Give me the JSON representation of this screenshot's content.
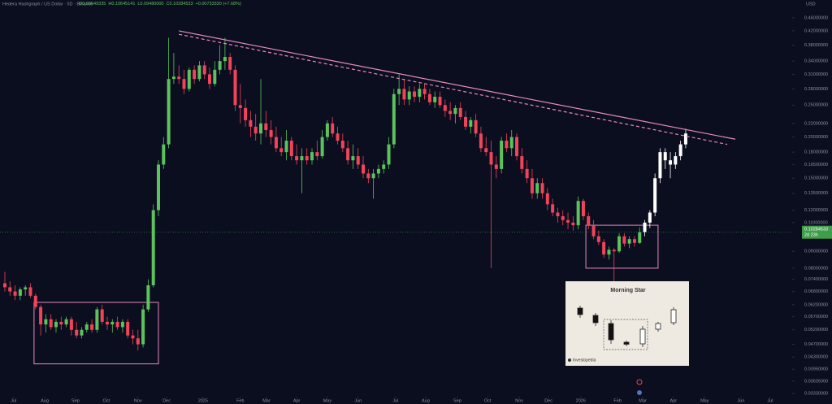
{
  "chart_data": {
    "type": "candlestick",
    "title": "Hedera Hashgraph / US Dollar · 5D · Binance",
    "legend_values": [
      "O0.09549335",
      "H0.10645141",
      "L0.09480000",
      "C0.10284533",
      "+0.00733330 (+7.68%)"
    ],
    "currency": "USD",
    "log_scale": true,
    "xlim": [
      -0.95,
      153.8
    ],
    "ylim": [
      0.0326,
      0.521
    ],
    "xticks": [
      {
        "value": 1.7,
        "label": "Jul"
      },
      {
        "value": 7.8,
        "label": "Aug"
      },
      {
        "value": 13.8,
        "label": "Sep"
      },
      {
        "value": 19.8,
        "label": "Oct"
      },
      {
        "value": 26,
        "label": "Nov"
      },
      {
        "value": 31.6,
        "label": "Dec"
      },
      {
        "value": 38.7,
        "label": "2025"
      },
      {
        "value": 46,
        "label": "Feb"
      },
      {
        "value": 51.1,
        "label": "Mar"
      },
      {
        "value": 57,
        "label": "Apr"
      },
      {
        "value": 63,
        "label": "May"
      },
      {
        "value": 69,
        "label": "Jun"
      },
      {
        "value": 76.3,
        "label": "Jul"
      },
      {
        "value": 82.2,
        "label": "Aug"
      },
      {
        "value": 88.4,
        "label": "Sep"
      },
      {
        "value": 94.3,
        "label": "Oct"
      },
      {
        "value": 100.5,
        "label": "Nov"
      },
      {
        "value": 106.2,
        "label": "Dec"
      },
      {
        "value": 112.5,
        "label": "2026"
      },
      {
        "value": 119.7,
        "label": "Feb"
      },
      {
        "value": 124.6,
        "label": "Mar"
      },
      {
        "value": 130.6,
        "label": "Apr"
      },
      {
        "value": 136.7,
        "label": "May"
      },
      {
        "value": 143.8,
        "label": "Jun"
      },
      {
        "value": 149.5,
        "label": "Jul"
      }
    ],
    "yticks": [
      {
        "value": 0.46,
        "label": "0.46000000"
      },
      {
        "value": 0.42,
        "label": "0.42000000"
      },
      {
        "value": 0.38,
        "label": "0.38000000"
      },
      {
        "value": 0.34,
        "label": "0.34000000"
      },
      {
        "value": 0.31,
        "label": "0.31000000"
      },
      {
        "value": 0.28,
        "label": "0.28000000"
      },
      {
        "value": 0.25,
        "label": "0.25000000"
      },
      {
        "value": 0.22,
        "label": "0.22000000"
      },
      {
        "value": 0.2,
        "label": "0.20000000"
      },
      {
        "value": 0.18,
        "label": "0.18000000"
      },
      {
        "value": 0.165,
        "label": "0.16500000"
      },
      {
        "value": 0.15,
        "label": "0.15000000"
      },
      {
        "value": 0.135,
        "label": "0.13500000"
      },
      {
        "value": 0.12,
        "label": "0.12000000"
      },
      {
        "value": 0.11,
        "label": "0.11000000"
      },
      {
        "value": 0.09,
        "label": "0.09000000"
      },
      {
        "value": 0.08,
        "label": "0.08000000"
      },
      {
        "value": 0.074,
        "label": "0.07400000"
      },
      {
        "value": 0.068,
        "label": "0.06800000"
      },
      {
        "value": 0.062,
        "label": "0.06200000"
      },
      {
        "value": 0.057,
        "label": "0.05700000"
      },
      {
        "value": 0.052,
        "label": "0.05200000"
      },
      {
        "value": 0.047,
        "label": "0.04700000"
      },
      {
        "value": 0.043,
        "label": "0.04300000"
      },
      {
        "value": 0.0395,
        "label": "0.03950000"
      },
      {
        "value": 0.03635,
        "label": "0.03635000"
      },
      {
        "value": 0.0333,
        "label": "0.03330000"
      }
    ],
    "series": [
      {
        "x_start": 0,
        "up_color": "#5cc25c",
        "down_color": "#f0445a",
        "ohlc": [
          [
            0.072,
            0.078,
            0.068,
            0.07
          ],
          [
            0.07,
            0.073,
            0.066,
            0.068
          ],
          [
            0.068,
            0.071,
            0.064,
            0.066
          ],
          [
            0.066,
            0.07,
            0.064,
            0.069
          ],
          [
            0.069,
            0.071,
            0.066,
            0.07
          ],
          [
            0.07,
            0.072,
            0.065,
            0.066
          ],
          [
            0.066,
            0.067,
            0.06,
            0.061
          ],
          [
            0.061,
            0.062,
            0.05,
            0.054
          ],
          [
            0.054,
            0.058,
            0.051,
            0.056
          ],
          [
            0.056,
            0.058,
            0.052,
            0.053
          ],
          [
            0.053,
            0.056,
            0.051,
            0.055
          ],
          [
            0.055,
            0.057,
            0.052,
            0.054
          ],
          [
            0.054,
            0.057,
            0.053,
            0.056
          ],
          [
            0.056,
            0.057,
            0.05,
            0.052
          ],
          [
            0.052,
            0.055,
            0.049,
            0.05
          ],
          [
            0.05,
            0.053,
            0.049,
            0.052
          ],
          [
            0.052,
            0.055,
            0.051,
            0.054
          ],
          [
            0.054,
            0.056,
            0.051,
            0.052
          ],
          [
            0.052,
            0.061,
            0.051,
            0.06
          ],
          [
            0.06,
            0.062,
            0.054,
            0.055
          ],
          [
            0.055,
            0.057,
            0.052,
            0.054
          ],
          [
            0.054,
            0.056,
            0.051,
            0.055
          ],
          [
            0.055,
            0.057,
            0.052,
            0.053
          ],
          [
            0.053,
            0.056,
            0.051,
            0.055
          ],
          [
            0.055,
            0.056,
            0.049,
            0.05
          ],
          [
            0.05,
            0.052,
            0.047,
            0.049
          ],
          [
            0.049,
            0.052,
            0.045,
            0.047
          ],
          [
            0.047,
            0.062,
            0.046,
            0.06
          ],
          [
            0.06,
            0.074,
            0.059,
            0.071
          ],
          [
            0.071,
            0.125,
            0.07,
            0.12
          ],
          [
            0.12,
            0.17,
            0.115,
            0.165
          ],
          [
            0.165,
            0.2,
            0.16,
            0.19
          ],
          [
            0.19,
            0.4,
            0.185,
            0.3
          ],
          [
            0.3,
            0.36,
            0.29,
            0.305
          ],
          [
            0.305,
            0.33,
            0.29,
            0.3
          ],
          [
            0.3,
            0.32,
            0.27,
            0.28
          ],
          [
            0.28,
            0.325,
            0.275,
            0.32
          ],
          [
            0.32,
            0.33,
            0.29,
            0.3
          ],
          [
            0.3,
            0.34,
            0.295,
            0.33
          ],
          [
            0.33,
            0.34,
            0.3,
            0.31
          ],
          [
            0.31,
            0.325,
            0.28,
            0.29
          ],
          [
            0.29,
            0.34,
            0.285,
            0.32
          ],
          [
            0.32,
            0.38,
            0.31,
            0.34
          ],
          [
            0.34,
            0.4,
            0.32,
            0.35
          ],
          [
            0.35,
            0.36,
            0.31,
            0.32
          ],
          [
            0.32,
            0.33,
            0.24,
            0.25
          ],
          [
            0.25,
            0.29,
            0.22,
            0.245
          ],
          [
            0.245,
            0.26,
            0.215,
            0.225
          ],
          [
            0.225,
            0.24,
            0.2,
            0.215
          ],
          [
            0.215,
            0.235,
            0.195,
            0.205
          ],
          [
            0.205,
            0.3,
            0.19,
            0.22
          ],
          [
            0.22,
            0.24,
            0.2,
            0.21
          ],
          [
            0.21,
            0.225,
            0.19,
            0.2
          ],
          [
            0.2,
            0.215,
            0.18,
            0.185
          ],
          [
            0.185,
            0.2,
            0.175,
            0.18
          ],
          [
            0.18,
            0.21,
            0.17,
            0.195
          ],
          [
            0.195,
            0.2,
            0.17,
            0.175
          ],
          [
            0.175,
            0.19,
            0.165,
            0.17
          ],
          [
            0.17,
            0.185,
            0.135,
            0.175
          ],
          [
            0.175,
            0.185,
            0.165,
            0.17
          ],
          [
            0.17,
            0.185,
            0.165,
            0.18
          ],
          [
            0.18,
            0.195,
            0.17,
            0.175
          ],
          [
            0.175,
            0.21,
            0.172,
            0.2
          ],
          [
            0.2,
            0.225,
            0.195,
            0.22
          ],
          [
            0.22,
            0.23,
            0.2,
            0.205
          ],
          [
            0.205,
            0.215,
            0.19,
            0.195
          ],
          [
            0.195,
            0.205,
            0.18,
            0.185
          ],
          [
            0.185,
            0.195,
            0.165,
            0.17
          ],
          [
            0.17,
            0.19,
            0.16,
            0.175
          ],
          [
            0.175,
            0.185,
            0.16,
            0.165
          ],
          [
            0.165,
            0.175,
            0.15,
            0.155
          ],
          [
            0.155,
            0.16,
            0.145,
            0.15
          ],
          [
            0.15,
            0.16,
            0.13,
            0.155
          ],
          [
            0.155,
            0.165,
            0.15,
            0.16
          ],
          [
            0.16,
            0.17,
            0.155,
            0.165
          ],
          [
            0.165,
            0.2,
            0.16,
            0.19
          ],
          [
            0.19,
            0.28,
            0.185,
            0.27
          ],
          [
            0.27,
            0.31,
            0.25,
            0.28
          ],
          [
            0.28,
            0.3,
            0.25,
            0.26
          ],
          [
            0.26,
            0.285,
            0.25,
            0.275
          ],
          [
            0.275,
            0.285,
            0.255,
            0.265
          ],
          [
            0.265,
            0.29,
            0.255,
            0.28
          ],
          [
            0.28,
            0.29,
            0.26,
            0.27
          ],
          [
            0.27,
            0.28,
            0.25,
            0.255
          ],
          [
            0.255,
            0.275,
            0.245,
            0.265
          ],
          [
            0.265,
            0.275,
            0.245,
            0.25
          ],
          [
            0.25,
            0.26,
            0.23,
            0.24
          ],
          [
            0.24,
            0.255,
            0.225,
            0.235
          ],
          [
            0.235,
            0.25,
            0.22,
            0.245
          ],
          [
            0.245,
            0.255,
            0.225,
            0.23
          ],
          [
            0.23,
            0.24,
            0.21,
            0.215
          ],
          [
            0.215,
            0.23,
            0.205,
            0.225
          ],
          [
            0.225,
            0.235,
            0.2,
            0.205
          ],
          [
            0.205,
            0.215,
            0.18,
            0.185
          ],
          [
            0.185,
            0.2,
            0.175,
            0.18
          ],
          [
            0.18,
            0.195,
            0.08,
            0.165
          ],
          [
            0.165,
            0.175,
            0.15,
            0.16
          ],
          [
            0.16,
            0.2,
            0.155,
            0.195
          ],
          [
            0.195,
            0.205,
            0.18,
            0.185
          ],
          [
            0.185,
            0.21,
            0.175,
            0.2
          ],
          [
            0.2,
            0.205,
            0.17,
            0.175
          ],
          [
            0.175,
            0.185,
            0.155,
            0.16
          ],
          [
            0.16,
            0.17,
            0.145,
            0.15
          ],
          [
            0.15,
            0.16,
            0.13,
            0.135
          ],
          [
            0.135,
            0.15,
            0.13,
            0.145
          ],
          [
            0.145,
            0.15,
            0.13,
            0.135
          ],
          [
            0.135,
            0.14,
            0.12,
            0.125
          ],
          [
            0.125,
            0.13,
            0.115,
            0.118
          ],
          [
            0.118,
            0.122,
            0.11,
            0.115
          ],
          [
            0.115,
            0.12,
            0.108,
            0.112
          ],
          [
            0.112,
            0.118,
            0.105,
            0.11
          ],
          [
            0.11,
            0.115,
            0.104,
            0.108
          ],
          [
            0.108,
            0.132,
            0.105,
            0.128
          ],
          [
            0.128,
            0.13,
            0.112,
            0.115
          ],
          [
            0.115,
            0.118,
            0.105,
            0.108
          ],
          [
            0.108,
            0.112,
            0.098,
            0.1
          ],
          [
            0.1,
            0.104,
            0.094,
            0.096
          ],
          [
            0.096,
            0.098,
            0.086,
            0.088
          ],
          [
            0.088,
            0.093,
            0.085,
            0.091
          ],
          [
            0.091,
            0.092,
            0.072,
            0.09
          ],
          [
            0.09,
            0.102,
            0.089,
            0.1
          ],
          [
            0.1,
            0.102,
            0.093,
            0.095
          ],
          [
            0.095,
            0.1,
            0.092,
            0.098
          ],
          [
            0.098,
            0.1,
            0.093,
            0.0955
          ],
          [
            0.09549335,
            0.10645141,
            0.0948,
            0.10284533
          ]
        ]
      },
      {
        "x_start": 125,
        "up_color": "#ffffff",
        "down_color": "#ffffff",
        "ohlc": [
          [
            0.103,
            0.112,
            0.1,
            0.11
          ],
          [
            0.11,
            0.12,
            0.106,
            0.118
          ],
          [
            0.118,
            0.155,
            0.115,
            0.15
          ],
          [
            0.15,
            0.185,
            0.145,
            0.18
          ],
          [
            0.18,
            0.185,
            0.16,
            0.17
          ],
          [
            0.17,
            0.18,
            0.15,
            0.165
          ],
          [
            0.165,
            0.18,
            0.16,
            0.175
          ],
          [
            0.175,
            0.195,
            0.17,
            0.19
          ],
          [
            0.19,
            0.212,
            0.185,
            0.205
          ]
        ]
      }
    ],
    "trendlines": [
      {
        "points": [
          [
            34,
            0.42
          ],
          [
            142.7,
            0.197
          ]
        ],
        "color": "#e58bbf",
        "dashed": false
      },
      {
        "points": [
          [
            34,
            0.41
          ],
          [
            141.1,
            0.19
          ]
        ],
        "color": "#e58bbf",
        "dashed": true
      }
    ],
    "boxes": [
      {
        "x": [
          5.7,
          30
        ],
        "y": [
          0.041,
          0.063
        ],
        "color": "#e58bbf"
      },
      {
        "x": [
          113.5,
          127.6
        ],
        "y": [
          0.08,
          0.108
        ],
        "color": "#e58bbf"
      }
    ],
    "last_price": {
      "value": 0.10284533,
      "label": "0.10284533"
    },
    "countdown": "2d 23h",
    "inset": {
      "title": "Morning Star",
      "source": "Investopedia"
    }
  }
}
